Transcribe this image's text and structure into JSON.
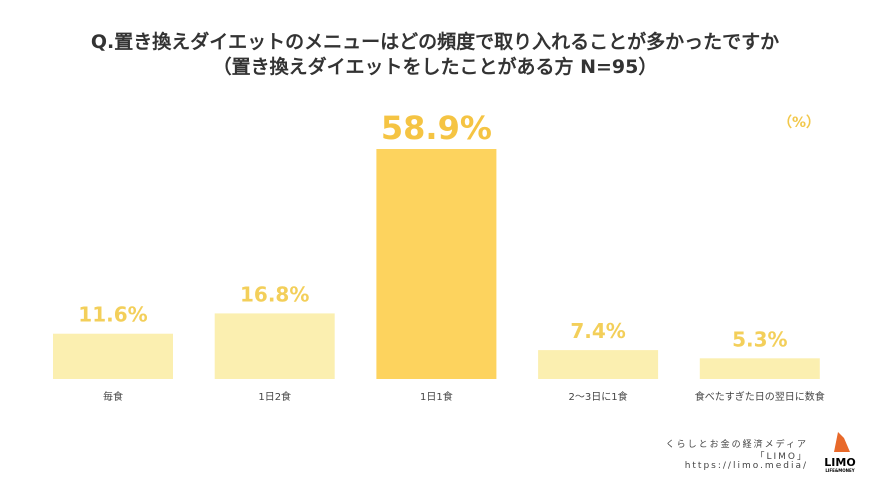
{
  "title_line1": "Q.置き換えダイエットのメニューはどの頻度で取り入れることが多かったですか",
  "title_line2": "（置き換えダイエットをしたことがある方 N=95）",
  "chart_data": {
    "type": "bar",
    "title": "Q.置き換えダイエットのメニューはどの頻度で取り入れることが多かったですか（置き換えダイエットをしたことがある方 N=95）",
    "unit_label": "（%）",
    "categories": [
      "毎食",
      "1日2食",
      "1日1食",
      "2～3日に1食",
      "食べたすぎた日の翌日に数食"
    ],
    "values": [
      11.6,
      16.8,
      58.9,
      7.4,
      5.3
    ],
    "data_labels": [
      "11.6%",
      "16.8%",
      "58.9%",
      "7.4%",
      "5.3%"
    ],
    "highlight_index": 2,
    "colors": {
      "bar": "#fbefb0",
      "highlight": "#fdd35e",
      "label": "#f3cf5a",
      "highlight_label": "#f5c443"
    },
    "ylim": [
      0,
      60
    ]
  },
  "footer": {
    "line1": "くらしとお金の経済メディア",
    "line2": "「LIMO」",
    "line3": "https://limo.media/"
  },
  "logo": {
    "name": "LIMO",
    "tagline": "LIFE & MONEY"
  }
}
